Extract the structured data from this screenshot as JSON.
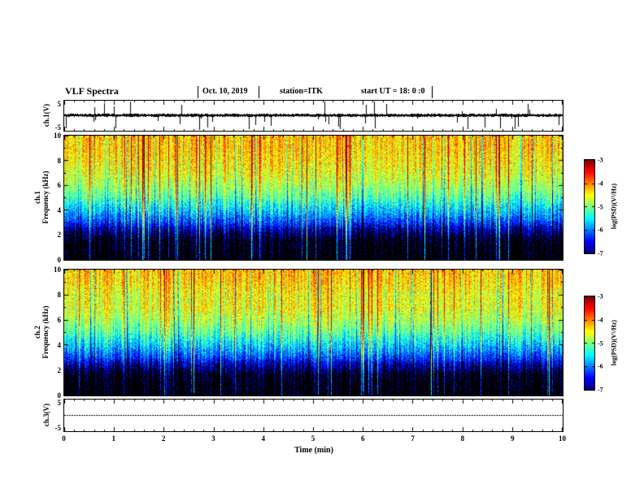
{
  "header": {
    "title": "VLF Spectra",
    "date": "Oct. 10, 2019",
    "station": "station=ITK",
    "start_ut": "start UT =  18: 0 :0"
  },
  "xaxis": {
    "label": "Time (min)",
    "ticks": [
      "0",
      "1",
      "2",
      "3",
      "4",
      "5",
      "6",
      "7",
      "8",
      "9",
      "10"
    ]
  },
  "panels": {
    "ch1_wave": {
      "ylabel": "ch.1(V)",
      "yticks": [
        "5",
        "-5"
      ]
    },
    "spec1": {
      "ylabel_ch": "ch.1",
      "ylabel_freq": "Frequency (kHz)",
      "yticks": [
        "10",
        "8",
        "6",
        "4",
        "2",
        "0"
      ]
    },
    "spec2": {
      "ylabel_ch": "ch.2",
      "ylabel_freq": "Frequency (kHz)",
      "yticks": [
        "10",
        "8",
        "6",
        "4",
        "2",
        "0"
      ]
    },
    "ch3_wave": {
      "ylabel": "ch.3(V)",
      "yticks": [
        "5",
        "-5"
      ]
    }
  },
  "colorbar": {
    "label": "log(PSD)(V²/Hz)",
    "ticks": [
      "-3",
      "-4",
      "-5",
      "-6",
      "-7"
    ],
    "colormap": "jet",
    "range": [
      -7,
      -3
    ]
  },
  "chart_data": [
    {
      "type": "line",
      "name": "ch1-waveform",
      "ylabel": "ch.1(V)",
      "xlabel": "Time (min)",
      "xlim": [
        0,
        10
      ],
      "ylim": [
        -5,
        5
      ],
      "description": "dense broadband noise band near 0 V with many impulsive sferic spikes, several reaching -5 V clipping",
      "noise_band_v": 0.5,
      "spike_prob": 0.07,
      "spike_amp_v": [
        1,
        5
      ]
    },
    {
      "type": "heatmap",
      "name": "ch1-spectrogram",
      "ylabel": "Frequency (kHz)",
      "xlabel": "Time (min)",
      "xlim": [
        0,
        10
      ],
      "ylim": [
        0,
        10
      ],
      "zlabel": "log(PSD)(V²/Hz)",
      "zlim": [
        -7,
        -3
      ],
      "colormap": "jet",
      "description": "VLF spectrogram: black below ~2 kHz, blue/cyan 2-4 kHz, green 4-6 kHz, yellow-orange 6-10 kHz with red broadband vertical streaks from sferics",
      "profile_freq_khz": [
        0,
        1.5,
        2,
        2.5,
        3,
        4,
        5,
        6,
        7,
        8,
        9,
        10
      ],
      "profile_log_psd": [
        -7.5,
        -7.35,
        -7.05,
        -6.75,
        -6.3,
        -5.7,
        -5.2,
        -4.85,
        -4.6,
        -4.45,
        -4.35,
        -4.3
      ],
      "noise_sigma": 0.45,
      "streak_prob": 0.06
    },
    {
      "type": "heatmap",
      "name": "ch2-spectrogram",
      "ylabel": "Frequency (kHz)",
      "xlabel": "Time (min)",
      "xlim": [
        0,
        10
      ],
      "ylim": [
        0,
        10
      ],
      "zlabel": "log(PSD)(V²/Hz)",
      "zlim": [
        -7,
        -3
      ],
      "colormap": "jet",
      "description": "same structure as ch.1 spectrogram",
      "profile_freq_khz": [
        0,
        1.5,
        2,
        2.5,
        3,
        4,
        5,
        6,
        7,
        8,
        9,
        10
      ],
      "profile_log_psd": [
        -7.5,
        -7.35,
        -7.05,
        -6.75,
        -6.3,
        -5.7,
        -5.2,
        -4.85,
        -4.6,
        -4.6,
        -4.4,
        -4.3
      ],
      "noise_sigma": 0.45,
      "streak_prob": 0.06
    },
    {
      "type": "line",
      "name": "ch3-waveform",
      "ylabel": "ch.3(V)",
      "xlabel": "Time (min)",
      "xlim": [
        0,
        10
      ],
      "ylim": [
        -5,
        5
      ],
      "description": "flat (no signal) trace at 0 V",
      "value_v": 0
    }
  ]
}
